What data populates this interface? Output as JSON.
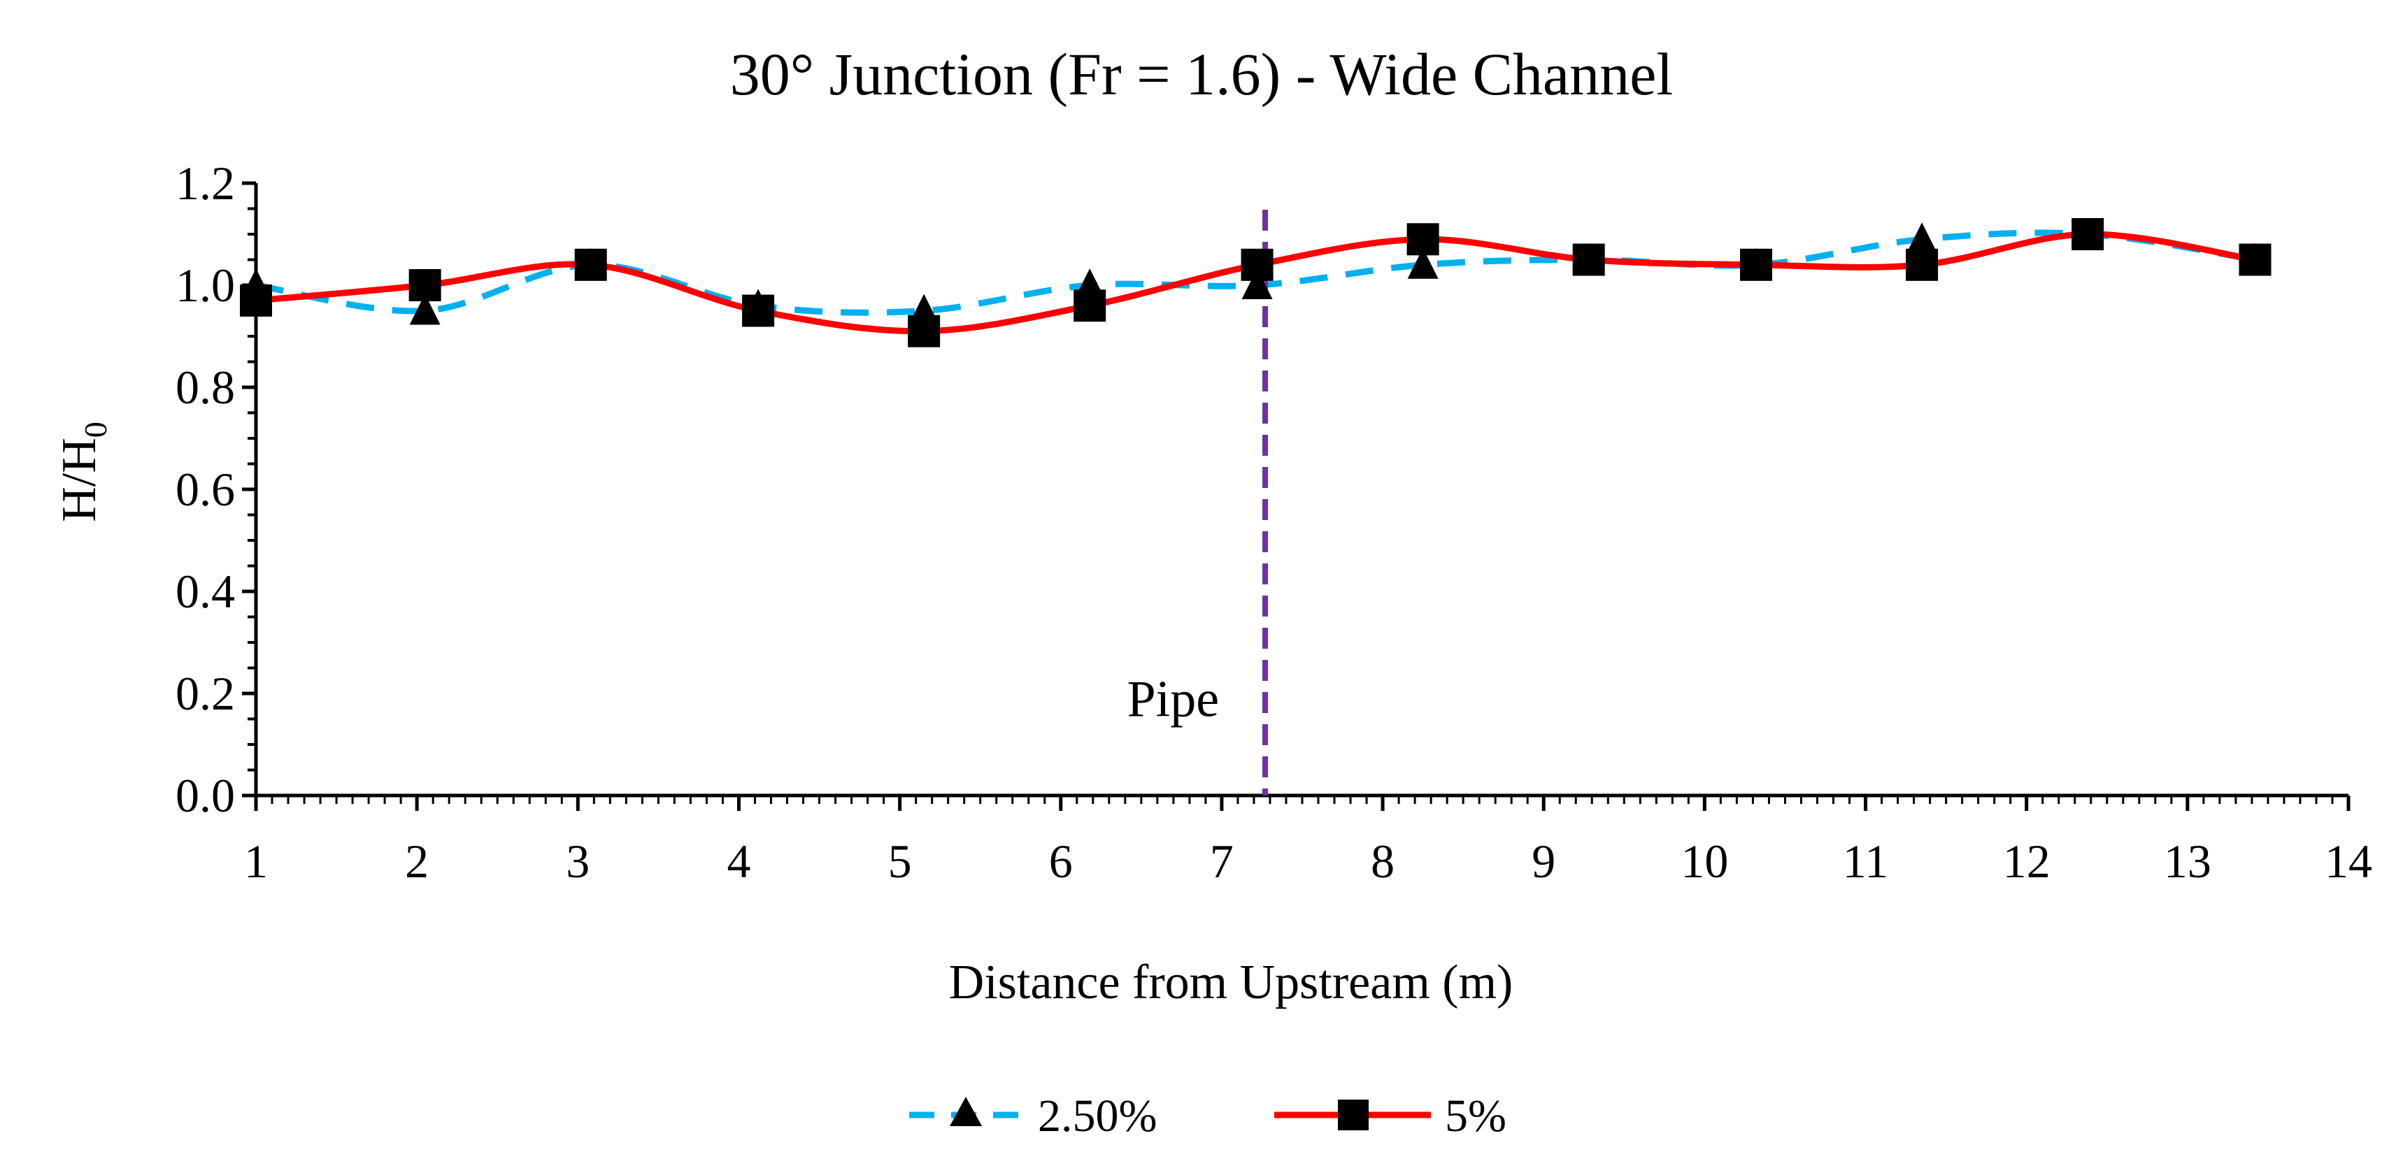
{
  "chart_data": {
    "type": "line",
    "title": "30° Junction (Fr = 1.6) - Wide Channel",
    "xlabel": "Distance from Upstream (m)",
    "ylabel_main": "H/H",
    "ylabel_sub": "0",
    "xlim": [
      1,
      14
    ],
    "ylim": [
      0,
      1.2
    ],
    "x_ticks": [
      1,
      2,
      3,
      4,
      5,
      6,
      7,
      8,
      9,
      10,
      11,
      12,
      13,
      14
    ],
    "x_tick_labels": [
      "1",
      "2",
      "3",
      "4",
      "5",
      "6",
      "7",
      "8",
      "9",
      "10",
      "11",
      "12",
      "13",
      "14"
    ],
    "y_ticks": [
      0,
      0.2,
      0.4,
      0.6,
      0.8,
      1.0,
      1.2
    ],
    "y_tick_labels": [
      "0.0",
      "0.2",
      "0.4",
      "0.6",
      "0.8",
      "1.0",
      "1.2"
    ],
    "series": [
      {
        "name": "2.50%",
        "color": "#00B0F0",
        "line_style": "dashed",
        "marker": "triangle",
        "x": [
          1.0,
          2.05,
          3.08,
          4.12,
          5.15,
          6.18,
          7.22,
          8.25,
          9.28,
          10.32,
          11.35,
          12.38,
          13.42
        ],
        "values": [
          1.0,
          0.95,
          1.04,
          0.96,
          0.95,
          1.0,
          1.0,
          1.04,
          1.05,
          1.04,
          1.09,
          1.1,
          1.05
        ]
      },
      {
        "name": "5%",
        "color": "#FF0000",
        "line_style": "solid",
        "marker": "square",
        "x": [
          1.0,
          2.05,
          3.08,
          4.12,
          5.15,
          6.18,
          7.22,
          8.25,
          9.28,
          10.32,
          11.35,
          12.38,
          13.42
        ],
        "values": [
          0.97,
          1.0,
          1.04,
          0.95,
          0.91,
          0.96,
          1.04,
          1.09,
          1.05,
          1.04,
          1.04,
          1.1,
          1.05
        ]
      }
    ],
    "reference_line": {
      "label": "Pipe",
      "x": 7.27,
      "color": "#7030A0",
      "line_style": "dashed"
    },
    "legend_position": "bottom",
    "grid": false
  }
}
